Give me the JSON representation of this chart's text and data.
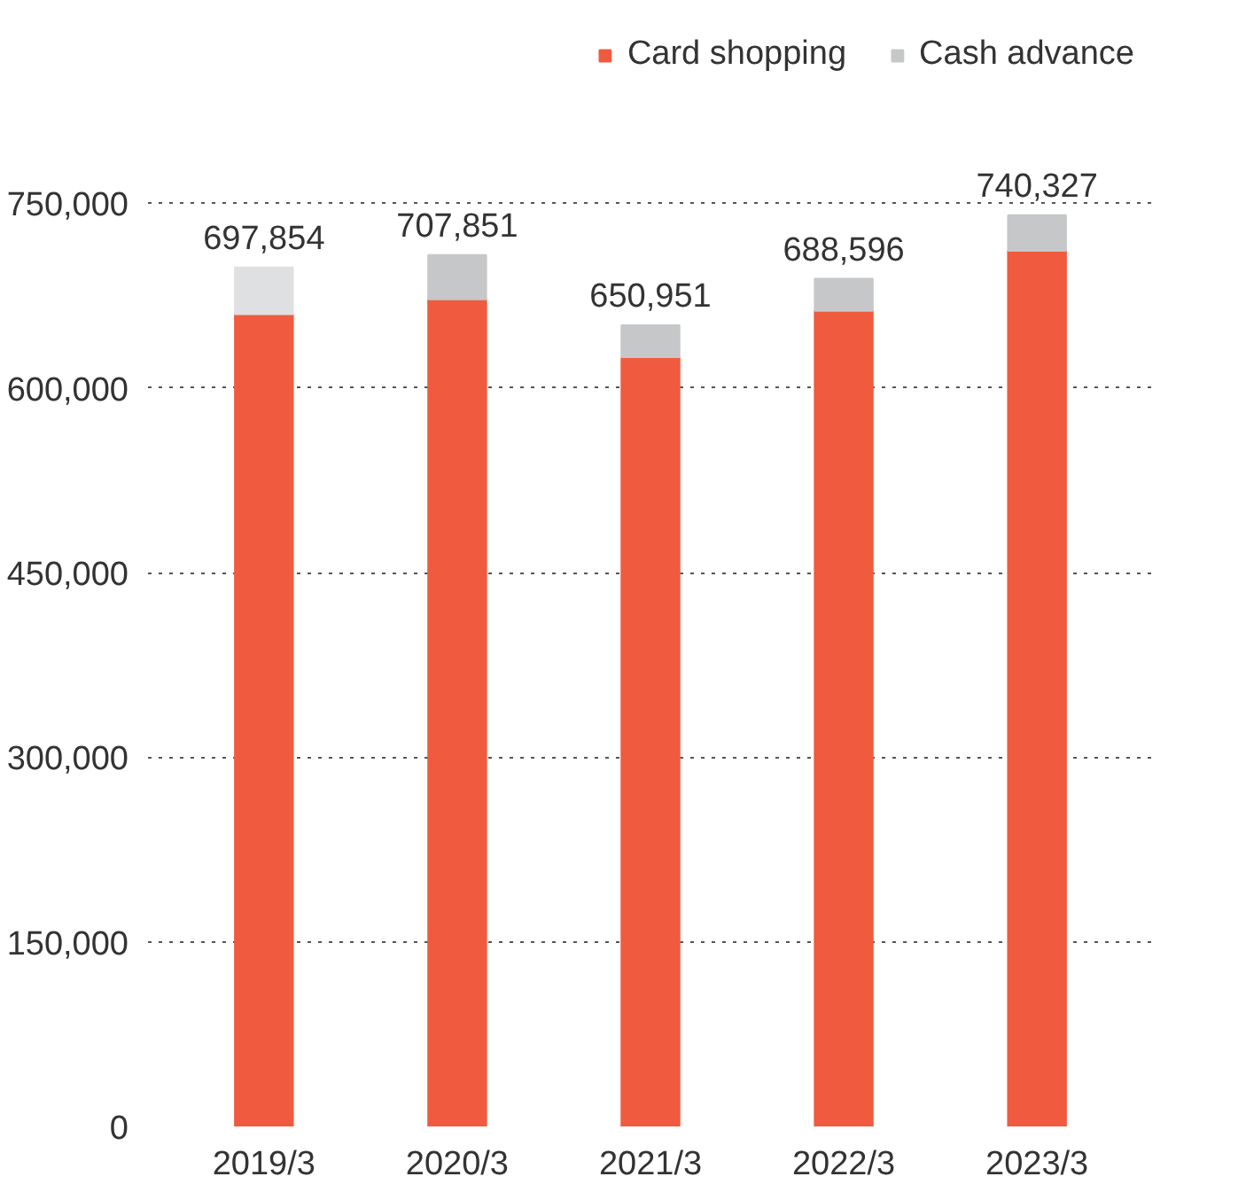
{
  "chart_data": {
    "type": "bar",
    "stacked": true,
    "categories": [
      "2019/3",
      "2020/3",
      "2021/3",
      "2022/3",
      "2023/3"
    ],
    "series": [
      {
        "name": "Card shopping",
        "color": "#f05a3e",
        "values": [
          659854,
          671851,
          624951,
          662596,
          711327
        ]
      },
      {
        "name": "Cash advance",
        "color": "#c6c7c8",
        "colors": [
          "#dfe0e2",
          "#c6c7c8",
          "#c6c7c8",
          "#c6c7c8",
          "#c6c7c8"
        ],
        "values": [
          38000,
          36000,
          26000,
          26000,
          29000
        ]
      }
    ],
    "totals": [
      "697,854",
      "707,851",
      "650,951",
      "688,596",
      "740,327"
    ],
    "ylim": [
      0,
      750000
    ],
    "yticks": [
      {
        "value": 0,
        "label": "0"
      },
      {
        "value": 150000,
        "label": "150,000"
      },
      {
        "value": 300000,
        "label": "300,000"
      },
      {
        "value": 450000,
        "label": "450,000"
      },
      {
        "value": 600000,
        "label": "600,000"
      },
      {
        "value": 750000,
        "label": "750,000"
      }
    ],
    "grid": "y",
    "legend": "top right"
  }
}
